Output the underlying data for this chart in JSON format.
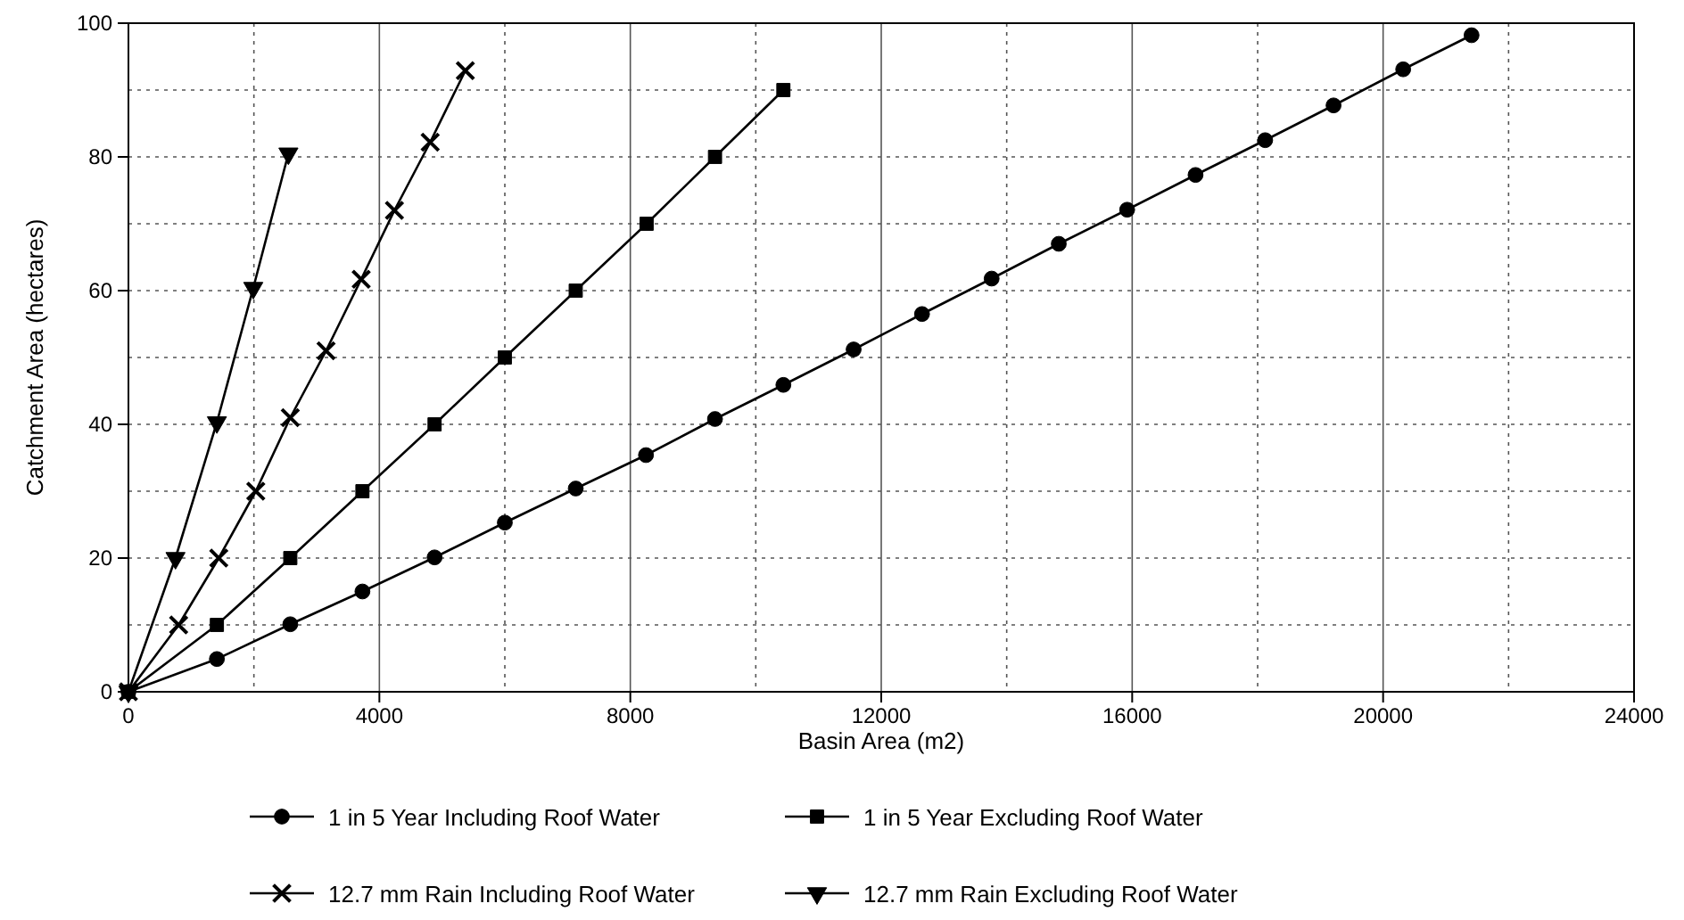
{
  "chart_data": {
    "type": "line",
    "xlabel": "Basin Area (m2)",
    "ylabel": "Catchment Area (hectares)",
    "xlim": [
      0,
      24000
    ],
    "ylim": [
      0,
      100
    ],
    "xticks": [
      0,
      {
        "value": 2000,
        "label": null
      },
      4000,
      {
        "value": 6000,
        "label": null
      },
      8000,
      {
        "value": 10000,
        "label": null
      },
      12000,
      {
        "value": 14000,
        "label": null
      },
      16000,
      {
        "value": 18000,
        "label": null
      },
      20000,
      {
        "value": 22000,
        "label": null
      },
      24000
    ],
    "yticks": [
      0,
      {
        "value": 10,
        "label": null
      },
      20,
      {
        "value": 30,
        "label": null
      },
      40,
      {
        "value": 50,
        "label": null
      },
      60,
      {
        "value": 70,
        "label": null
      },
      80,
      {
        "value": 90,
        "label": null
      },
      100
    ],
    "grid": true,
    "legend": "bottom",
    "line_style": "solid",
    "series": [
      {
        "name": "1 in 5 Year Including Roof Water",
        "color": "#000000",
        "marker": "circle",
        "x": [
          0,
          1410,
          2580,
          3730,
          4880,
          6000,
          7130,
          8250,
          9350,
          10440,
          11560,
          12650,
          13760,
          14830,
          15920,
          17010,
          18120,
          19210,
          20320,
          21410
        ],
        "values": [
          0,
          4.9,
          10.1,
          15,
          20.1,
          25.3,
          30.4,
          35.4,
          40.8,
          45.9,
          51.2,
          56.5,
          61.8,
          67,
          72.1,
          77.3,
          82.5,
          87.7,
          93.1,
          98.2
        ]
      },
      {
        "name": "1 in 5 Year Excluding Roof Water",
        "color": "#000000",
        "marker": "square",
        "x": [
          0,
          1410,
          2580,
          3730,
          4880,
          6000,
          7130,
          8260,
          9350,
          10440
        ],
        "values": [
          0,
          10,
          20,
          30,
          40,
          50,
          60,
          70,
          80,
          90
        ]
      },
      {
        "name": "12.7 mm Rain Including Roof Water",
        "color": "#000000",
        "marker": "cross",
        "x": [
          0,
          800,
          1440,
          2030,
          2580,
          3150,
          3710,
          4240,
          4810,
          5370
        ],
        "values": [
          0,
          10,
          20,
          30,
          41,
          51,
          61.7,
          72,
          82.2,
          92.9
        ]
      },
      {
        "name": "12.7 mm Rain Excluding Roof Water",
        "color": "#000000",
        "marker": "triangle",
        "x": [
          0,
          750,
          1410,
          1990,
          2550
        ],
        "values": [
          0,
          20,
          40.3,
          60.4,
          80.5
        ]
      }
    ]
  }
}
